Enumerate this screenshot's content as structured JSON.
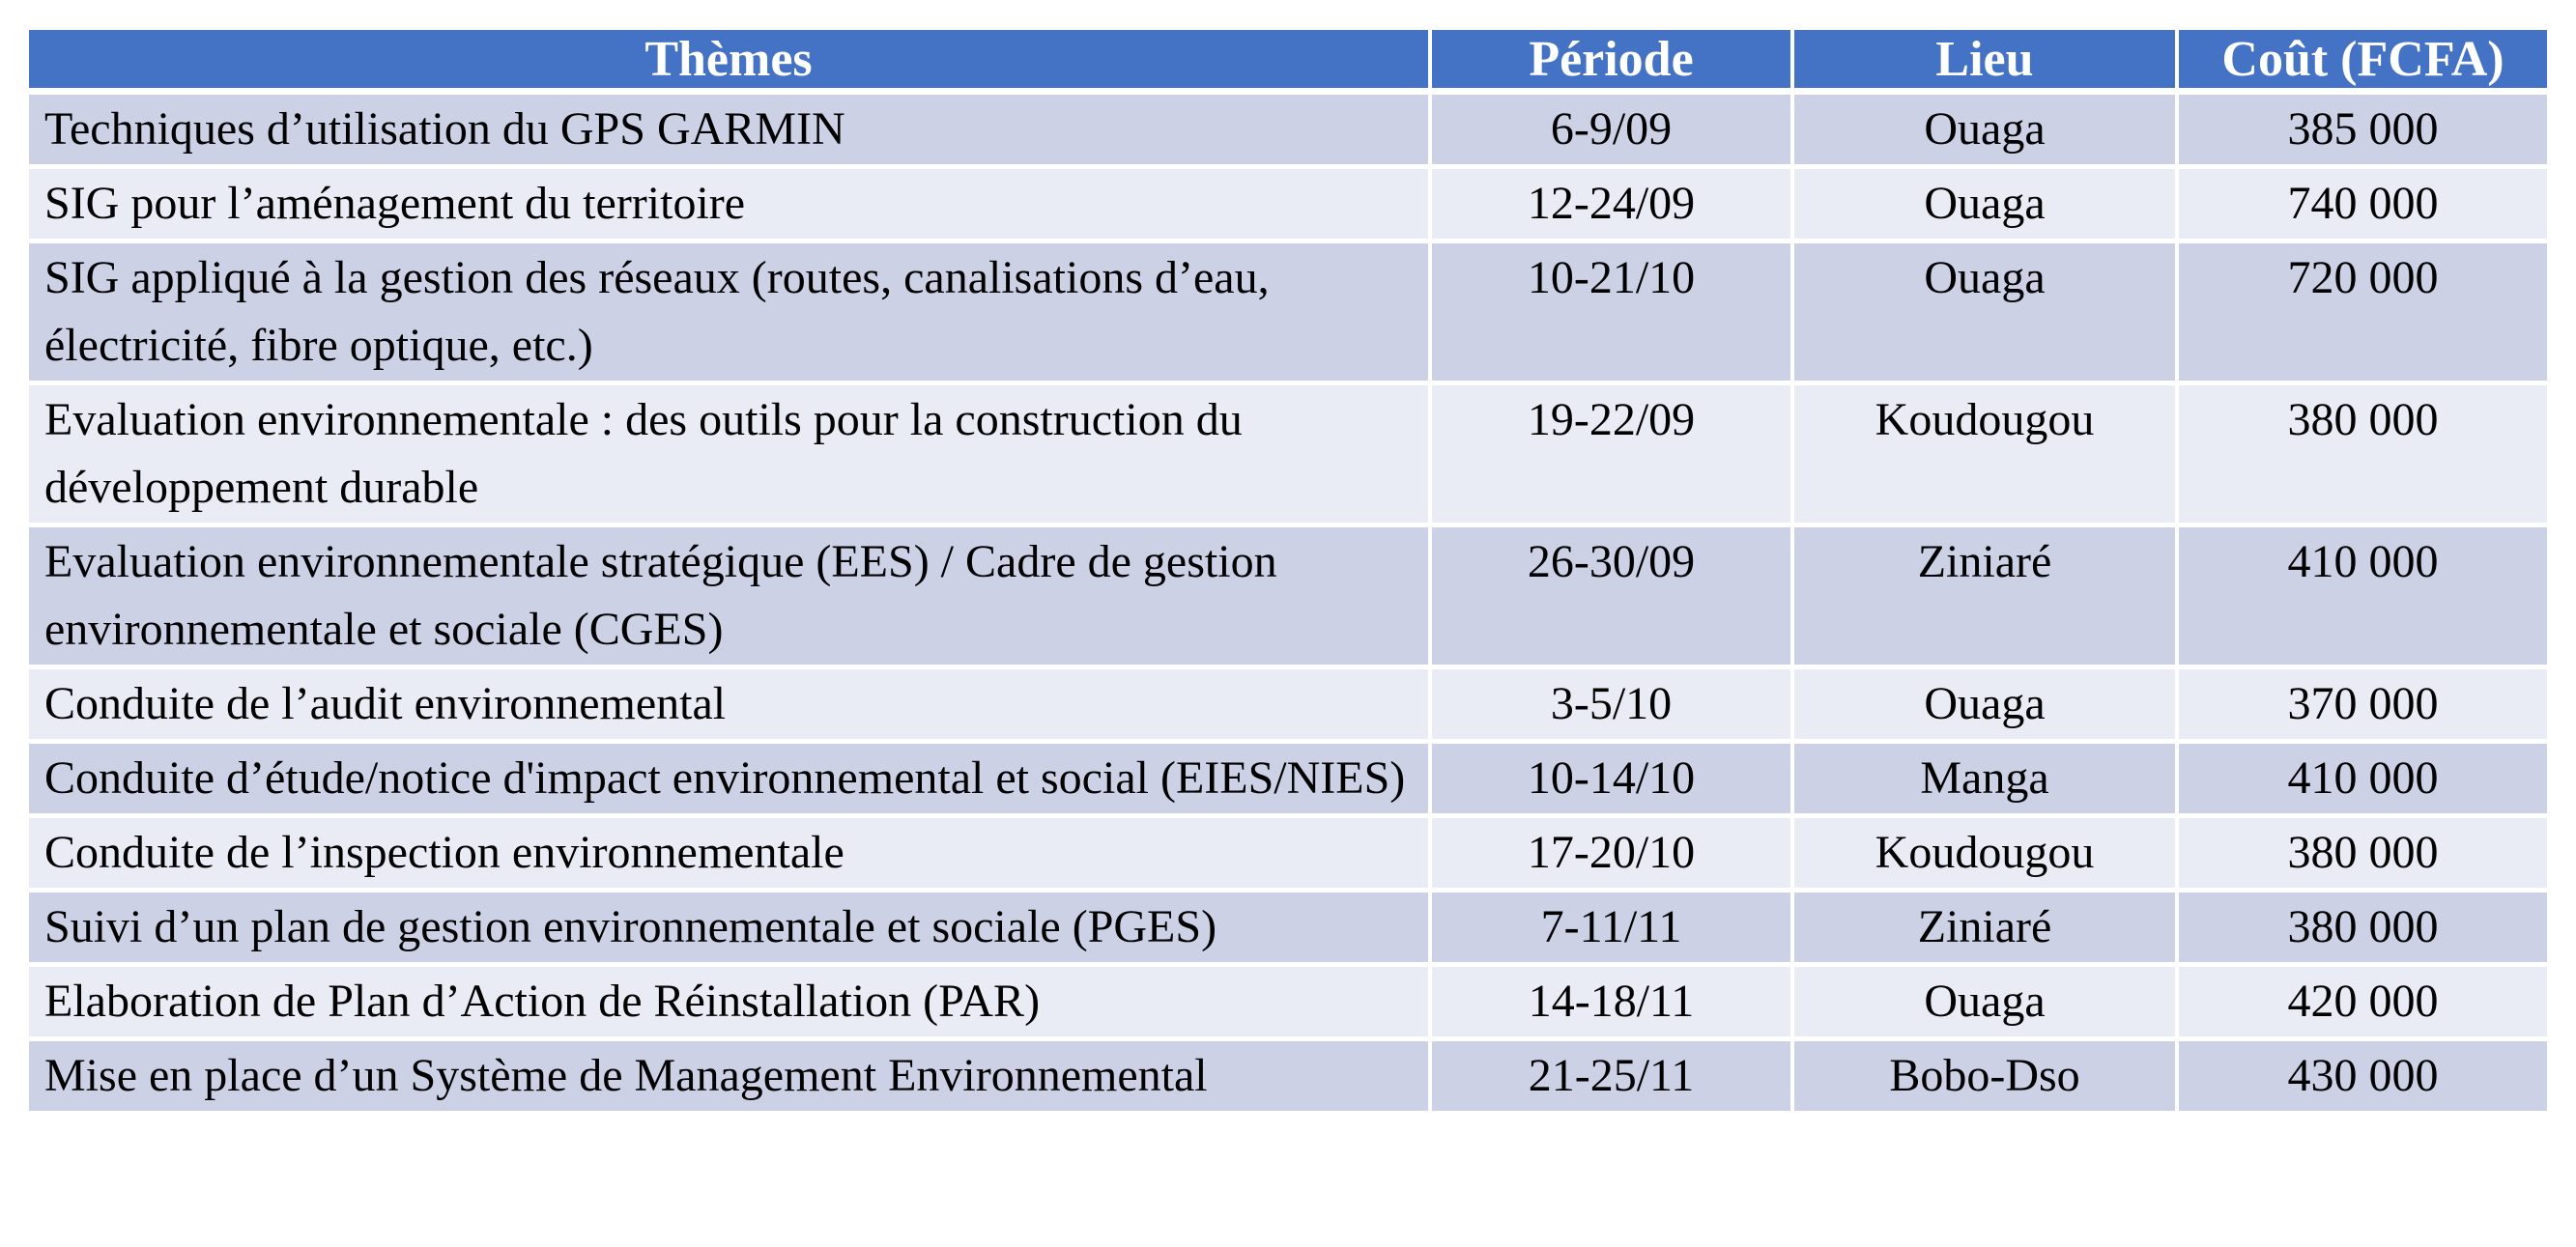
{
  "page": {
    "background": "#ffffff"
  },
  "table": {
    "colors": {
      "header_bg": "#4472c4",
      "header_color": "#ffffff",
      "band_dark": "#cdd1e6",
      "band_light": "#e9ebf5",
      "separator": "#ffffff",
      "body_text": "#000000"
    },
    "columns": [
      {
        "key": "theme",
        "label": "Thèmes",
        "align": "left"
      },
      {
        "key": "periode",
        "label": "Période",
        "align": "center"
      },
      {
        "key": "lieu",
        "label": "Lieu",
        "align": "center"
      },
      {
        "key": "cout",
        "label": "Coût (FCFA)",
        "align": "center"
      }
    ],
    "rows": [
      {
        "theme": "Techniques d’utilisation du GPS GARMIN",
        "periode": "6-9/09",
        "lieu": "Ouaga",
        "cout": "385 000"
      },
      {
        "theme": "SIG pour l’aménagement du territoire",
        "periode": "12-24/09",
        "lieu": "Ouaga",
        "cout": "740 000"
      },
      {
        "theme": "SIG appliqué à la gestion des réseaux (routes, canalisations d’eau, électricité, fibre optique, etc.)",
        "periode": "10-21/10",
        "lieu": "Ouaga",
        "cout": "720 000"
      },
      {
        "theme": "Evaluation environnementale : des outils pour la construction du développement durable",
        "periode": "19-22/09",
        "lieu": "Koudougou",
        "cout": "380 000"
      },
      {
        "theme": "Evaluation environnementale stratégique (EES) / Cadre de gestion environnementale et sociale (CGES)",
        "periode": "26-30/09",
        "lieu": "Ziniaré",
        "cout": "410 000"
      },
      {
        "theme": "Conduite de l’audit environnemental",
        "periode": "3-5/10",
        "lieu": "Ouaga",
        "cout": "370 000"
      },
      {
        "theme": "Conduite d’étude/notice d'impact environnemental et social (EIES/NIES)",
        "periode": "10-14/10",
        "lieu": "Manga",
        "cout": "410 000"
      },
      {
        "theme": "Conduite de l’inspection environnementale",
        "periode": "17-20/10",
        "lieu": "Koudougou",
        "cout": "380 000"
      },
      {
        "theme": "Suivi d’un plan de gestion environnementale et sociale (PGES)",
        "periode": "7-11/11",
        "lieu": "Ziniaré",
        "cout": "380 000"
      },
      {
        "theme": "Elaboration de Plan d’Action de Réinstallation (PAR)",
        "periode": "14-18/11",
        "lieu": "Ouaga",
        "cout": "420 000"
      },
      {
        "theme": "Mise en place d’un Système de Management Environnemental",
        "periode": "21-25/11",
        "lieu": "Bobo-Dso",
        "cout": "430 000"
      }
    ]
  }
}
